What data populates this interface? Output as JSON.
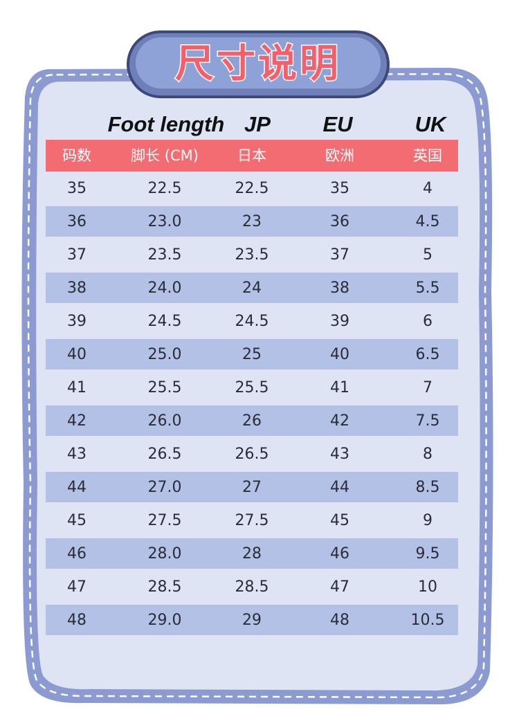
{
  "title": "尺寸说明",
  "table": {
    "english_header": [
      "Foot length",
      "JP",
      "EU",
      "UK"
    ],
    "header": [
      "码数",
      "脚长 (CM)",
      "日本",
      "欧洲",
      "英国"
    ],
    "rows": [
      [
        "35",
        "22.5",
        "22.5",
        "35",
        "4"
      ],
      [
        "36",
        "23.0",
        "23",
        "36",
        "4.5"
      ],
      [
        "37",
        "23.5",
        "23.5",
        "37",
        "5"
      ],
      [
        "38",
        "24.0",
        "24",
        "38",
        "5.5"
      ],
      [
        "39",
        "24.5",
        "24.5",
        "39",
        "6"
      ],
      [
        "40",
        "25.0",
        "25",
        "40",
        "6.5"
      ],
      [
        "41",
        "25.5",
        "25.5",
        "41",
        "7"
      ],
      [
        "42",
        "26.0",
        "26",
        "42",
        "7.5"
      ],
      [
        "43",
        "26.5",
        "26.5",
        "43",
        "8"
      ],
      [
        "44",
        "27.0",
        "27",
        "44",
        "8.5"
      ],
      [
        "45",
        "27.5",
        "27.5",
        "45",
        "9"
      ],
      [
        "46",
        "28.0",
        "28",
        "46",
        "9.5"
      ],
      [
        "47",
        "28.5",
        "28.5",
        "47",
        "10"
      ],
      [
        "48",
        "29.0",
        "29",
        "48",
        "10.5"
      ]
    ]
  }
}
